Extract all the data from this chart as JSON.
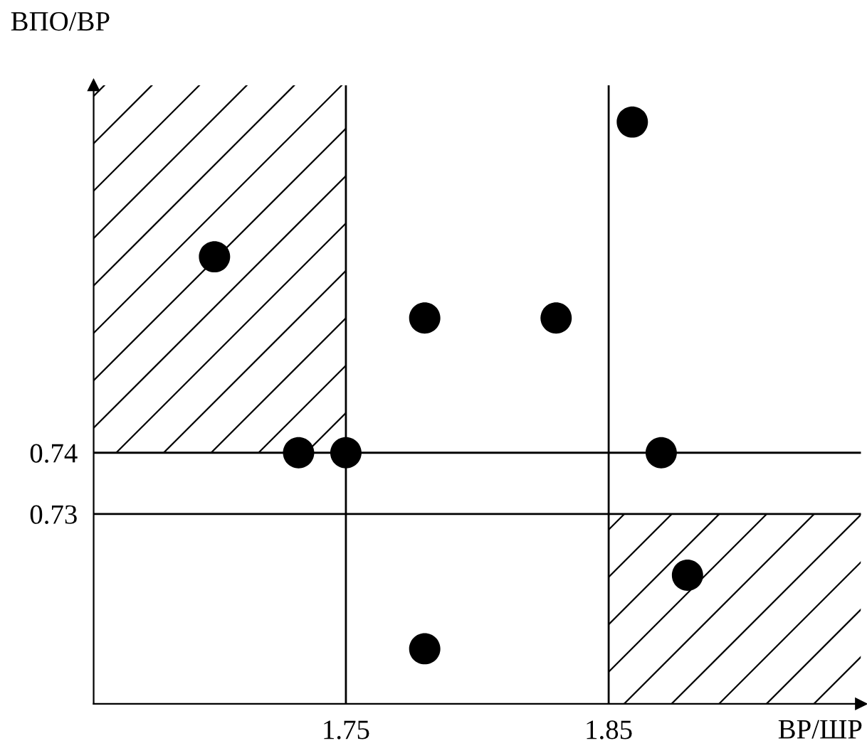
{
  "chart_data": {
    "type": "scatter",
    "xlabel": "ВР/ШР",
    "ylabel": "ВПО/ВР",
    "series": [
      {
        "color": "#000000",
        "x": [
          1.7,
          1.732,
          1.75,
          1.78,
          1.78,
          1.83,
          1.859,
          1.87,
          1.88
        ],
        "values": [
          0.772,
          0.74,
          0.74,
          0.762,
          0.708,
          0.762,
          0.794,
          0.74,
          0.72
        ]
      }
    ],
    "xlim": [
      1.654,
      1.946
    ],
    "ylim": [
      0.699,
      0.8
    ],
    "xticks": [
      1.75,
      1.85
    ],
    "yticks": [
      0.73,
      0.74
    ],
    "marker": "circle",
    "grid": false,
    "ref_lines": [
      {
        "axis": "x",
        "value": 1.75
      },
      {
        "axis": "x",
        "value": 1.85
      },
      {
        "axis": "y",
        "value": 0.74
      },
      {
        "axis": "y",
        "value": 0.73
      }
    ],
    "bands": [
      {
        "axis": "x",
        "from": 1.654,
        "to": 1.75
      },
      {
        "axis": "x",
        "from": 1.85,
        "to": 1.946
      }
    ]
  }
}
